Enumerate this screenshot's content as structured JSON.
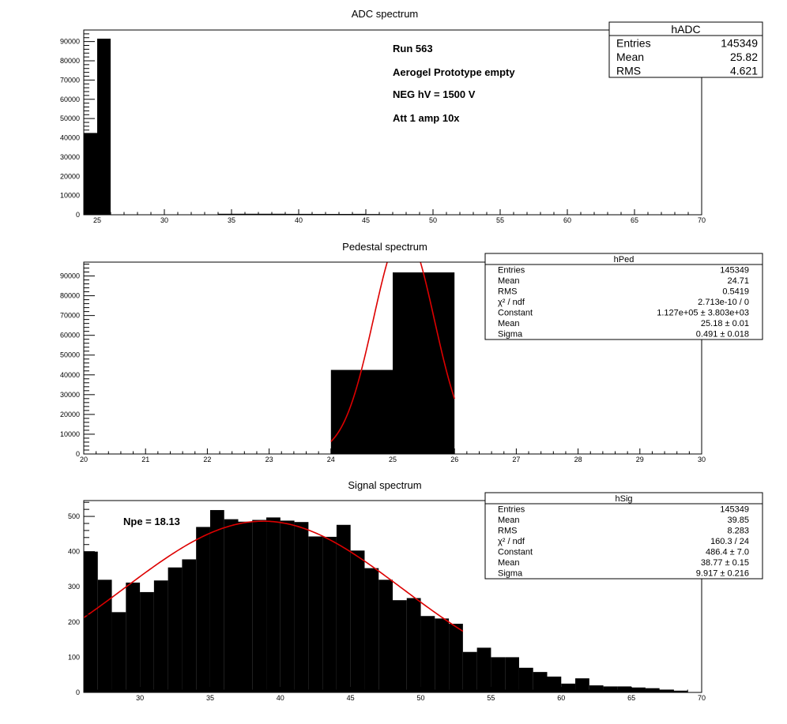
{
  "chart_data": [
    {
      "type": "bar",
      "title": "ADC spectrum",
      "xlim": [
        24,
        70
      ],
      "ylim": [
        0,
        96000
      ],
      "xticks": [
        25,
        30,
        35,
        40,
        45,
        50,
        55,
        60,
        65,
        70
      ],
      "yticks": [
        0,
        10000,
        20000,
        30000,
        40000,
        50000,
        60000,
        70000,
        80000,
        90000
      ],
      "bin_width": 1,
      "bins": [
        {
          "x": 24,
          "y": 42500
        },
        {
          "x": 25,
          "y": 91500
        },
        {
          "x": 34,
          "y": 500
        },
        {
          "x": 35,
          "y": 500
        },
        {
          "x": 36,
          "y": 500
        },
        {
          "x": 37,
          "y": 500
        },
        {
          "x": 38,
          "y": 500
        },
        {
          "x": 39,
          "y": 450
        },
        {
          "x": 40,
          "y": 450
        },
        {
          "x": 41,
          "y": 400
        },
        {
          "x": 42,
          "y": 400
        },
        {
          "x": 43,
          "y": 400
        },
        {
          "x": 44,
          "y": 450
        },
        {
          "x": 45,
          "y": 350
        },
        {
          "x": 46,
          "y": 300
        },
        {
          "x": 47,
          "y": 250
        },
        {
          "x": 48,
          "y": 250
        },
        {
          "x": 49,
          "y": 200
        },
        {
          "x": 50,
          "y": 200
        },
        {
          "x": 51,
          "y": 180
        },
        {
          "x": 52,
          "y": 170
        }
      ],
      "annotations": [
        "Run  563",
        "Aerogel Prototype empty",
        "NEG hV = 1500 V",
        "Att 1 amp 10x"
      ],
      "stats": {
        "name": "hADC",
        "rows": [
          {
            "label": "Entries",
            "value": "145349"
          },
          {
            "label": "Mean",
            "value": "25.82"
          },
          {
            "label": "RMS",
            "value": "4.621"
          }
        ]
      }
    },
    {
      "type": "bar",
      "title": "Pedestal spectrum",
      "xlim": [
        20,
        30
      ],
      "ylim": [
        0,
        97000
      ],
      "xticks": [
        20,
        21,
        22,
        23,
        24,
        25,
        26,
        27,
        28,
        29,
        30
      ],
      "yticks": [
        0,
        10000,
        20000,
        30000,
        40000,
        50000,
        60000,
        70000,
        80000,
        90000
      ],
      "bin_width": 1,
      "bins": [
        {
          "x": 24,
          "y": 42500
        },
        {
          "x": 25,
          "y": 91800
        }
      ],
      "fit": {
        "type": "gaus",
        "constant": 112700,
        "mean": 25.18,
        "sigma": 0.491,
        "range": [
          24,
          26
        ]
      },
      "stats": {
        "name": "hPed",
        "rows": [
          {
            "label": "Entries",
            "value": "145349"
          },
          {
            "label": "Mean",
            "value": "24.71"
          },
          {
            "label": "RMS",
            "value": "0.5419"
          },
          {
            "label": "χ² / ndf",
            "value": "2.713e-10 / 0"
          },
          {
            "label": "Constant",
            "value": "1.127e+05 ± 3.803e+03"
          },
          {
            "label": "Mean",
            "value": "25.18 ± 0.01"
          },
          {
            "label": "Sigma",
            "value": "0.491 ± 0.018"
          }
        ]
      }
    },
    {
      "type": "bar",
      "title": "Signal spectrum",
      "xlim": [
        26,
        70
      ],
      "ylim": [
        0,
        545
      ],
      "xticks": [
        30,
        35,
        40,
        45,
        50,
        55,
        60,
        65,
        70
      ],
      "yticks": [
        0,
        100,
        200,
        300,
        400,
        500
      ],
      "bin_width": 1,
      "bins": [
        {
          "x": 26,
          "y": 400
        },
        {
          "x": 27,
          "y": 320
        },
        {
          "x": 28,
          "y": 228
        },
        {
          "x": 29,
          "y": 312
        },
        {
          "x": 30,
          "y": 285
        },
        {
          "x": 31,
          "y": 318
        },
        {
          "x": 32,
          "y": 355
        },
        {
          "x": 33,
          "y": 378
        },
        {
          "x": 34,
          "y": 470
        },
        {
          "x": 35,
          "y": 518
        },
        {
          "x": 36,
          "y": 492
        },
        {
          "x": 37,
          "y": 485
        },
        {
          "x": 38,
          "y": 490
        },
        {
          "x": 39,
          "y": 497
        },
        {
          "x": 40,
          "y": 488
        },
        {
          "x": 41,
          "y": 484
        },
        {
          "x": 42,
          "y": 443
        },
        {
          "x": 43,
          "y": 442
        },
        {
          "x": 44,
          "y": 476
        },
        {
          "x": 45,
          "y": 403
        },
        {
          "x": 46,
          "y": 353
        },
        {
          "x": 47,
          "y": 320
        },
        {
          "x": 48,
          "y": 262
        },
        {
          "x": 49,
          "y": 268
        },
        {
          "x": 50,
          "y": 217
        },
        {
          "x": 51,
          "y": 210
        },
        {
          "x": 52,
          "y": 195
        },
        {
          "x": 53,
          "y": 115
        },
        {
          "x": 54,
          "y": 127
        },
        {
          "x": 55,
          "y": 100
        },
        {
          "x": 56,
          "y": 100
        },
        {
          "x": 57,
          "y": 70
        },
        {
          "x": 58,
          "y": 58
        },
        {
          "x": 59,
          "y": 45
        },
        {
          "x": 60,
          "y": 25
        },
        {
          "x": 61,
          "y": 40
        },
        {
          "x": 62,
          "y": 20
        },
        {
          "x": 63,
          "y": 17
        },
        {
          "x": 64,
          "y": 17
        },
        {
          "x": 65,
          "y": 14
        },
        {
          "x": 66,
          "y": 12
        },
        {
          "x": 67,
          "y": 8
        },
        {
          "x": 68,
          "y": 5
        },
        {
          "x": 69,
          "y": 1
        }
      ],
      "fit": {
        "type": "gaus",
        "constant": 486.4,
        "mean": 38.77,
        "sigma": 9.917,
        "range": [
          26,
          53
        ]
      },
      "annotations": [
        "Npe = 18.13"
      ],
      "stats": {
        "name": "hSig",
        "rows": [
          {
            "label": "Entries",
            "value": "145349"
          },
          {
            "label": "Mean",
            "value": "39.85"
          },
          {
            "label": "RMS",
            "value": "8.283"
          },
          {
            "label": "χ² / ndf",
            "value": "160.3 / 24"
          },
          {
            "label": "Constant",
            "value": "486.4 ± 7.0"
          },
          {
            "label": "Mean",
            "value": "38.77 ± 0.15"
          },
          {
            "label": "Sigma",
            "value": "9.917 ± 0.216"
          }
        ]
      }
    }
  ],
  "colors": {
    "bars": "#000000",
    "fit": "#dd0000",
    "frame": "#000000"
  }
}
